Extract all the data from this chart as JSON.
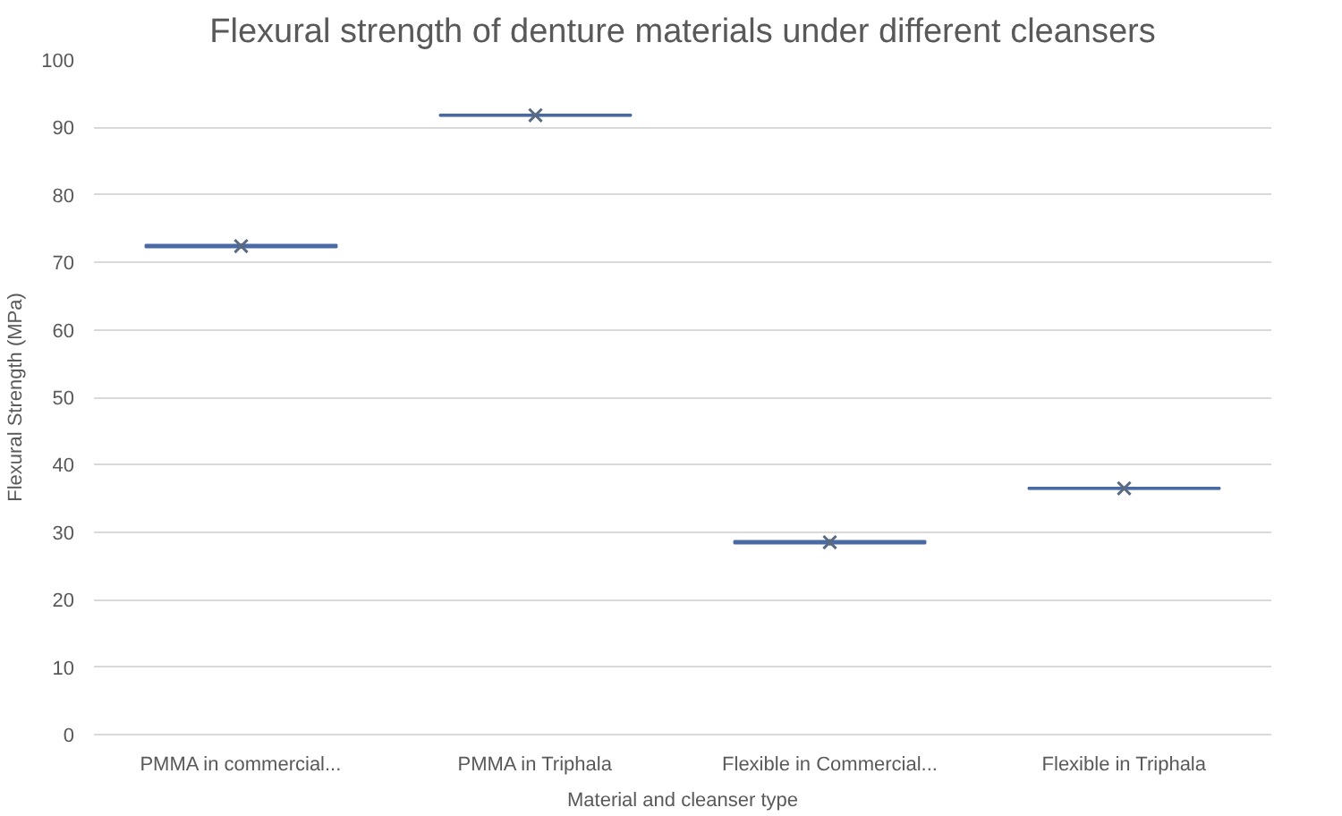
{
  "chart_data": {
    "type": "box",
    "title": "Flexural strength of denture materials under different cleansers",
    "xlabel": "Material and cleanser type",
    "ylabel": "Flexural Strength (MPa)",
    "categories": [
      "PMMA in commercial...",
      "PMMA in Triphala",
      "Flexible in Commercial...",
      "Flexible in Triphala"
    ],
    "color": "#4a6aa5",
    "boxes": [
      {
        "low": 72.0,
        "q1": 72.2,
        "median": 72.4,
        "q3": 72.6,
        "high": 72.8,
        "mean": 72.4
      },
      {
        "low": 91.5,
        "q1": 91.7,
        "median": 91.8,
        "q3": 91.9,
        "high": 92.1,
        "mean": 91.8
      },
      {
        "low": 28.0,
        "q1": 28.3,
        "median": 28.5,
        "q3": 28.7,
        "high": 29.0,
        "mean": 28.5
      },
      {
        "low": 36.2,
        "q1": 36.4,
        "median": 36.5,
        "q3": 36.6,
        "high": 36.8,
        "mean": 36.5
      }
    ],
    "ylim": [
      0,
      100
    ],
    "yticks": [
      0,
      10,
      20,
      30,
      40,
      50,
      60,
      70,
      80,
      90,
      100
    ],
    "grid": "y",
    "marker": "cross"
  }
}
